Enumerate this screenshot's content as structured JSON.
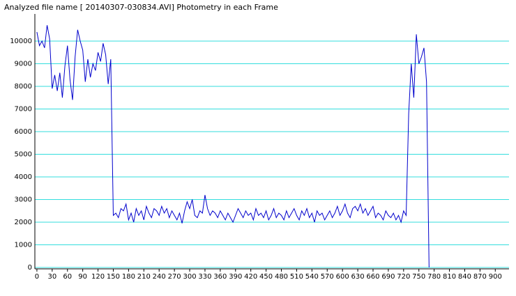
{
  "chart_data": {
    "type": "line",
    "title": "Analyzed file name [ 20140307-030834.AVI]   Photometry in each Frame",
    "color": "#0000cc",
    "grid": true,
    "grid_color": "#33dddd",
    "xlim": [
      -4,
      927
    ],
    "ylim": [
      0,
      11200
    ],
    "xticks": [
      0,
      30,
      60,
      90,
      120,
      150,
      180,
      210,
      240,
      270,
      300,
      330,
      360,
      390,
      420,
      450,
      480,
      510,
      540,
      570,
      600,
      630,
      660,
      690,
      720,
      750,
      780,
      810,
      840,
      870,
      900
    ],
    "yticks": [
      0,
      1000,
      2000,
      3000,
      4000,
      5000,
      6000,
      7000,
      8000,
      9000,
      10000
    ],
    "x": [
      0,
      5,
      10,
      15,
      20,
      25,
      30,
      35,
      40,
      45,
      50,
      55,
      60,
      65,
      70,
      75,
      80,
      85,
      90,
      95,
      100,
      105,
      110,
      115,
      120,
      125,
      130,
      135,
      140,
      145,
      150,
      155,
      160,
      165,
      170,
      175,
      180,
      185,
      190,
      195,
      200,
      205,
      210,
      215,
      220,
      225,
      230,
      235,
      240,
      245,
      250,
      255,
      260,
      265,
      270,
      275,
      280,
      285,
      290,
      295,
      300,
      305,
      310,
      315,
      320,
      325,
      330,
      335,
      340,
      345,
      350,
      355,
      360,
      365,
      370,
      375,
      380,
      385,
      390,
      395,
      400,
      405,
      410,
      415,
      420,
      425,
      430,
      435,
      440,
      445,
      450,
      455,
      460,
      465,
      470,
      475,
      480,
      485,
      490,
      495,
      500,
      505,
      510,
      515,
      520,
      525,
      530,
      535,
      540,
      545,
      550,
      555,
      560,
      565,
      570,
      575,
      580,
      585,
      590,
      595,
      600,
      605,
      610,
      615,
      620,
      625,
      630,
      635,
      640,
      645,
      650,
      655,
      660,
      665,
      670,
      675,
      680,
      685,
      690,
      695,
      700,
      705,
      710,
      715,
      720,
      725,
      730,
      735,
      740,
      745,
      750,
      755,
      760,
      765,
      770
    ],
    "values": [
      10400,
      9800,
      10000,
      9700,
      10700,
      10100,
      7900,
      8500,
      7800,
      8600,
      7500,
      8900,
      9800,
      8300,
      7400,
      9300,
      10500,
      10000,
      9600,
      8200,
      9200,
      8400,
      9000,
      8700,
      9500,
      9100,
      9900,
      9400,
      8100,
      9200,
      2300,
      2400,
      2200,
      2600,
      2500,
      2800,
      2100,
      2400,
      2000,
      2600,
      2300,
      2500,
      2100,
      2700,
      2400,
      2200,
      2600,
      2500,
      2300,
      2700,
      2400,
      2600,
      2200,
      2500,
      2300,
      2100,
      2400,
      1950,
      2500,
      2900,
      2600,
      3000,
      2300,
      2200,
      2500,
      2400,
      3200,
      2600,
      2300,
      2500,
      2400,
      2200,
      2500,
      2300,
      2100,
      2400,
      2200,
      2000,
      2300,
      2600,
      2400,
      2200,
      2500,
      2300,
      2400,
      2100,
      2600,
      2300,
      2400,
      2200,
      2500,
      2100,
      2300,
      2600,
      2200,
      2400,
      2300,
      2100,
      2500,
      2200,
      2400,
      2600,
      2300,
      2100,
      2500,
      2300,
      2600,
      2200,
      2400,
      2000,
      2500,
      2300,
      2400,
      2100,
      2300,
      2500,
      2200,
      2400,
      2700,
      2300,
      2500,
      2800,
      2400,
      2200,
      2600,
      2700,
      2500,
      2800,
      2400,
      2600,
      2300,
      2500,
      2700,
      2200,
      2400,
      2300,
      2100,
      2500,
      2300,
      2200,
      2400,
      2100,
      2300,
      2000,
      2500,
      2300,
      6800,
      9000,
      7500,
      10300,
      9000,
      9300,
      9700,
      8200,
      0
    ]
  }
}
